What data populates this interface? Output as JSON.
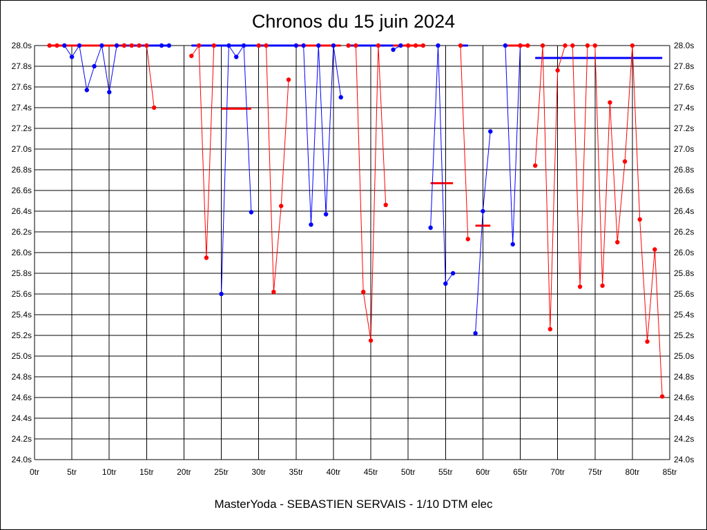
{
  "chart_data": {
    "type": "line",
    "title": "Chronos du 15 juin 2024",
    "footer": "MasterYoda - SEBASTIEN SERVAIS - 1/10 DTM elec",
    "xlim": [
      0,
      85
    ],
    "ylim": [
      24.0,
      28.0
    ],
    "x_ticks": [
      0,
      5,
      10,
      15,
      20,
      25,
      30,
      35,
      40,
      45,
      50,
      55,
      60,
      65,
      70,
      75,
      80,
      85
    ],
    "x_tick_labels": [
      "0tr",
      "5tr",
      "10tr",
      "15tr",
      "20tr",
      "25tr",
      "30tr",
      "35tr",
      "40tr",
      "45tr",
      "50tr",
      "55tr",
      "60tr",
      "65tr",
      "70tr",
      "75tr",
      "80tr",
      "85tr"
    ],
    "y_ticks": [
      24.0,
      24.2,
      24.4,
      24.6,
      24.8,
      25.0,
      25.2,
      25.4,
      25.6,
      25.8,
      26.0,
      26.2,
      26.4,
      26.6,
      26.8,
      27.0,
      27.2,
      27.4,
      27.6,
      27.8,
      28.0
    ],
    "y_tick_labels": [
      "24.0s",
      "24.2s",
      "24.4s",
      "24.6s",
      "24.8s",
      "25.0s",
      "25.2s",
      "25.4s",
      "25.6s",
      "25.8s",
      "26.0s",
      "26.2s",
      "26.4s",
      "26.6s",
      "26.8s",
      "27.0s",
      "27.2s",
      "27.4s",
      "27.6s",
      "27.8s",
      "28.0s"
    ],
    "grid": true,
    "colors": {
      "red": "#ff0000",
      "blue": "#0000ff"
    },
    "series": [
      {
        "color": "#ff0000",
        "points": [
          [
            2,
            28.0
          ],
          [
            3,
            28.0
          ],
          [
            4,
            28.0
          ]
        ]
      },
      {
        "color": "#0000ff",
        "points": [
          [
            4,
            28.0
          ],
          [
            5,
            27.89
          ],
          [
            6,
            28.0
          ],
          [
            7,
            27.57
          ],
          [
            8,
            27.8
          ],
          [
            9,
            28.0
          ],
          [
            10,
            27.55
          ],
          [
            11,
            28.0
          ],
          [
            12,
            28.0
          ]
        ]
      },
      {
        "color": "#ff0000",
        "points": [
          [
            12,
            28.0
          ],
          [
            13,
            28.0
          ],
          [
            14,
            28.0
          ],
          [
            15,
            28.0
          ],
          [
            16,
            27.4
          ]
        ]
      },
      {
        "color": "#0000ff",
        "points": [
          [
            17,
            28.0
          ],
          [
            18,
            28.0
          ]
        ]
      },
      {
        "color": "#ff0000",
        "points": [
          [
            21,
            27.9
          ],
          [
            22,
            28.0
          ],
          [
            23,
            25.95
          ],
          [
            24,
            28.0
          ]
        ]
      },
      {
        "color": "#0000ff",
        "points": [
          [
            25,
            25.6
          ],
          [
            26,
            28.0
          ],
          [
            27,
            27.89
          ],
          [
            28,
            28.0
          ],
          [
            29,
            26.39
          ]
        ]
      },
      {
        "color": "#ff0000",
        "points": [
          [
            30,
            28.0
          ],
          [
            31,
            28.0
          ],
          [
            32,
            25.62
          ],
          [
            33,
            26.45
          ],
          [
            34,
            27.67
          ]
        ]
      },
      {
        "color": "#0000ff",
        "points": [
          [
            35,
            28.0
          ],
          [
            36,
            28.0
          ],
          [
            37,
            26.27
          ],
          [
            38,
            28.0
          ],
          [
            39,
            26.37
          ],
          [
            40,
            28.0
          ],
          [
            41,
            27.5
          ]
        ]
      },
      {
        "color": "#ff0000",
        "points": [
          [
            42,
            28.0
          ],
          [
            43,
            28.0
          ],
          [
            44,
            25.62
          ],
          [
            45,
            25.15
          ],
          [
            46,
            28.0
          ],
          [
            47,
            26.46
          ]
        ]
      },
      {
        "color": "#0000ff",
        "points": [
          [
            48,
            27.96
          ],
          [
            49,
            28.0
          ]
        ]
      },
      {
        "color": "#ff0000",
        "points": [
          [
            50,
            28.0
          ],
          [
            51,
            28.0
          ],
          [
            52,
            28.0
          ]
        ]
      },
      {
        "color": "#0000ff",
        "points": [
          [
            53,
            26.24
          ],
          [
            54,
            28.0
          ],
          [
            55,
            25.7
          ],
          [
            56,
            25.8
          ]
        ]
      },
      {
        "color": "#ff0000",
        "points": [
          [
            57,
            28.0
          ],
          [
            58,
            26.13
          ]
        ]
      },
      {
        "color": "#0000ff",
        "points": [
          [
            59,
            25.22
          ],
          [
            60,
            26.4
          ],
          [
            61,
            27.17
          ]
        ]
      },
      {
        "color": "#0000ff",
        "points": [
          [
            63,
            28.0
          ],
          [
            64,
            26.08
          ],
          [
            65,
            28.0
          ]
        ]
      },
      {
        "color": "#ff0000",
        "points": [
          [
            65,
            28.0
          ],
          [
            66,
            28.0
          ]
        ]
      },
      {
        "color": "#ff0000",
        "points": [
          [
            67,
            26.84
          ],
          [
            68,
            28.0
          ],
          [
            69,
            25.26
          ],
          [
            70,
            27.76
          ],
          [
            71,
            28.0
          ],
          [
            72,
            28.0
          ],
          [
            73,
            25.67
          ],
          [
            74,
            28.0
          ],
          [
            75,
            28.0
          ],
          [
            76,
            25.68
          ],
          [
            77,
            27.45
          ],
          [
            78,
            26.1
          ],
          [
            79,
            26.88
          ],
          [
            80,
            28.0
          ],
          [
            81,
            26.32
          ],
          [
            82,
            25.14
          ],
          [
            83,
            26.03
          ],
          [
            84,
            24.61
          ]
        ]
      }
    ],
    "reference_lines": [
      {
        "color": "#ff0000",
        "x": [
          2,
          12
        ],
        "y": 28.0
      },
      {
        "color": "#0000ff",
        "x": [
          12,
          18
        ],
        "y": 28.0
      },
      {
        "color": "#0000ff",
        "x": [
          21,
          29
        ],
        "y": 28.0
      },
      {
        "color": "#ff0000",
        "x": [
          25,
          29
        ],
        "y": 27.39
      },
      {
        "color": "#0000ff",
        "x": [
          29,
          35
        ],
        "y": 28.0
      },
      {
        "color": "#ff0000",
        "x": [
          35,
          41
        ],
        "y": 28.0
      },
      {
        "color": "#0000ff",
        "x": [
          42,
          48
        ],
        "y": 28.0
      },
      {
        "color": "#ff0000",
        "x": [
          48,
          52
        ],
        "y": 28.0
      },
      {
        "color": "#ff0000",
        "x": [
          53,
          56
        ],
        "y": 26.67
      },
      {
        "color": "#0000ff",
        "x": [
          57,
          58
        ],
        "y": 28.0
      },
      {
        "color": "#ff0000",
        "x": [
          59,
          61
        ],
        "y": 26.26
      },
      {
        "color": "#ff0000",
        "x": [
          63,
          66
        ],
        "y": 28.0
      },
      {
        "color": "#0000ff",
        "x": [
          67,
          84
        ],
        "y": 27.88
      }
    ]
  }
}
